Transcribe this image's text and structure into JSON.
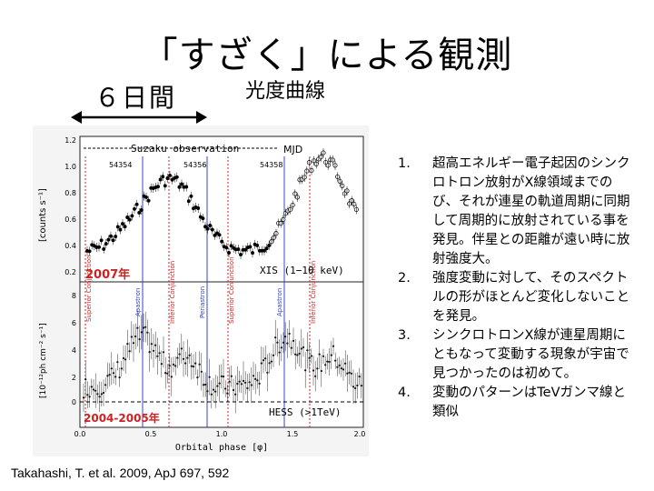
{
  "slide": {
    "title": "「すざく」による観測",
    "days_label": "６日間",
    "lightcurve_label": "光度曲線",
    "citation": "Takahashi, T. et al. 2009, ApJ 697, 592"
  },
  "figure": {
    "top_banner": "Suzaku observation",
    "mjd_label": "MJD",
    "mjd_ticks": [
      "54354",
      "54356",
      "54358"
    ],
    "upper_ylabel": "[counts s⁻¹]",
    "upper_yticks": [
      "1.2",
      "1.0",
      "0.8",
      "0.6",
      "0.4",
      "0.2"
    ],
    "lower_ylabel": "[10⁻¹²ph cm⁻² s⁻¹]",
    "lower_yticks": [
      "8",
      "6",
      "4",
      "2",
      "0"
    ],
    "xticks": [
      "0.0",
      "0.5",
      "1.0",
      "1.5",
      "2.0"
    ],
    "xlabel": "Orbital phase [φ]",
    "upper_panel_text": "XIS (1−10 keV)",
    "lower_panel_text": "HESS (>1TeV)",
    "year_upper": "2007年",
    "year_lower": "2004-2005年",
    "markers": [
      "Superior Conjunction",
      "Apastron",
      "Inferior Conjunction",
      "Periastron",
      "Superior Conjunction",
      "Apastron",
      "Inferior Conjunction"
    ]
  },
  "list": [
    {
      "num": "1.",
      "text": "超高エネルギー電子起因のシンクロトロン放射がX線領域までのび、それが連星の軌道周期に同期して周期的に放射されている事を発見。伴星との距離が遠い時に放射強度大。"
    },
    {
      "num": "2.",
      "text": "強度変動に対して、そのスペクトルの形がほとんど変化しないことを発見。"
    },
    {
      "num": "3.",
      "text": "シンクロトロンX線が連星周期にともなって変動する現象が宇宙で見つかったのは初めて。"
    },
    {
      "num": "4.",
      "text": "変動のパターンはTeVガンマ線と類似"
    }
  ]
}
